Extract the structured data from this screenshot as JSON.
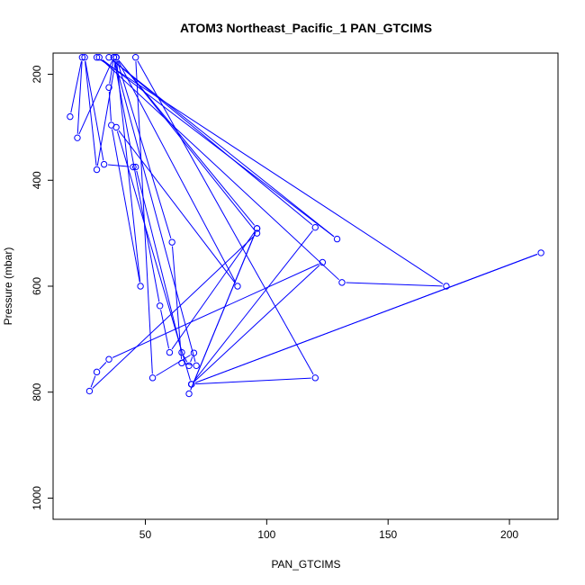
{
  "chart_data": {
    "type": "line",
    "title": "ATOM3 Northeast_Pacific_1 PAN_GTCIMS",
    "xlabel": "PAN_GTCIMS",
    "ylabel": "Pressure (mbar)",
    "xlim": [
      12,
      220
    ],
    "ylim": [
      1040,
      160
    ],
    "y_reversed": true,
    "xticks": [
      50,
      100,
      150,
      200
    ],
    "yticks": [
      200,
      400,
      600,
      800,
      1000
    ],
    "grid": false,
    "legend": "none",
    "series_color": "#0000ff",
    "marker": "open-circle",
    "series": [
      {
        "points": [
          [
            19,
            280
          ],
          [
            24,
            168
          ],
          [
            22,
            320
          ],
          [
            37,
            168
          ],
          [
            35,
            225
          ],
          [
            36,
            296
          ],
          [
            48,
            600
          ],
          [
            38,
            168
          ],
          [
            30,
            380
          ],
          [
            25,
            168
          ],
          [
            33,
            370
          ],
          [
            45,
            375
          ],
          [
            46,
            375
          ],
          [
            65,
            725
          ],
          [
            68,
            750
          ],
          [
            70,
            726
          ],
          [
            53,
            773
          ],
          [
            46,
            168
          ],
          [
            120,
            773
          ],
          [
            69,
            785
          ],
          [
            213,
            537
          ],
          [
            69,
            785
          ],
          [
            38,
            300
          ],
          [
            88,
            600
          ],
          [
            38,
            168
          ],
          [
            61,
            517
          ],
          [
            65,
            745
          ],
          [
            71,
            750
          ],
          [
            37,
            168
          ],
          [
            56,
            637
          ],
          [
            60,
            725
          ],
          [
            96,
            491
          ],
          [
            68,
            803
          ],
          [
            96,
            491
          ],
          [
            38,
            168
          ],
          [
            96,
            500
          ],
          [
            27,
            798
          ],
          [
            30,
            762
          ],
          [
            35,
            738
          ],
          [
            123,
            555
          ],
          [
            69,
            785
          ],
          [
            120,
            489
          ],
          [
            35,
            168
          ],
          [
            129,
            511
          ],
          [
            31,
            168
          ],
          [
            131,
            593
          ],
          [
            174,
            600
          ],
          [
            30,
            168
          ]
        ]
      }
    ]
  }
}
